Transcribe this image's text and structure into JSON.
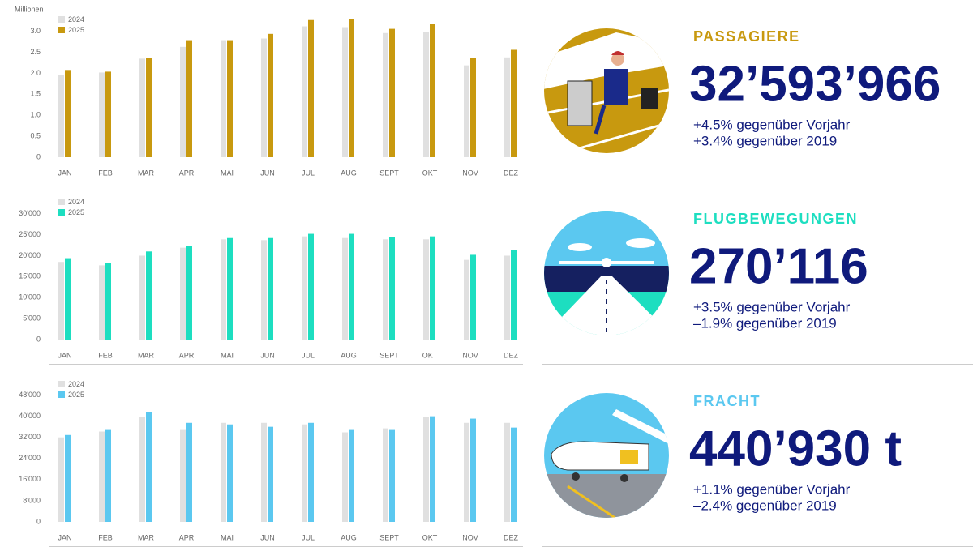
{
  "chart_data": [
    {
      "type": "bar",
      "y_label": "Millionen",
      "categories": [
        "JAN",
        "FEB",
        "MAR",
        "APR",
        "MAI",
        "JUN",
        "JUL",
        "AUG",
        "SEPT",
        "OKT",
        "NOV",
        "DEZ"
      ],
      "series": [
        {
          "name": "2024",
          "color": "#e0e0e0",
          "values": [
            1.96,
            2.02,
            2.35,
            2.63,
            2.79,
            2.83,
            3.12,
            3.1,
            2.96,
            2.98,
            2.19,
            2.38
          ]
        },
        {
          "name": "2025",
          "color": "#c8990f",
          "values": [
            2.08,
            2.04,
            2.37,
            2.79,
            2.79,
            2.94,
            3.27,
            3.29,
            3.06,
            3.17,
            2.37,
            2.56
          ]
        }
      ],
      "ylim": [
        0,
        3.4
      ],
      "yticks": [
        0,
        0.5,
        {
          "value": 1,
          "label": "1.0"
        },
        1.5,
        {
          "value": 2,
          "label": "2.0"
        },
        2.5,
        {
          "value": 3,
          "label": "3.0"
        }
      ]
    },
    {
      "type": "bar",
      "categories": [
        "JAN",
        "FEB",
        "MAR",
        "APR",
        "MAI",
        "JUN",
        "JUL",
        "AUG",
        "SEPT",
        "OKT",
        "NOV",
        "DEZ"
      ],
      "series": [
        {
          "name": "2024",
          "color": "#e0e0e0",
          "values": [
            18500,
            17700,
            20000,
            21900,
            23900,
            23700,
            24600,
            24200,
            23900,
            23900,
            19000,
            20000
          ]
        },
        {
          "name": "2025",
          "color": "#1ddec0",
          "values": [
            19400,
            18300,
            21000,
            22300,
            24200,
            24200,
            25200,
            25200,
            24400,
            24600,
            20200,
            21400
          ]
        }
      ],
      "ylim": [
        0,
        34000
      ],
      "yticks": [
        0,
        {
          "value": 5000,
          "label": "5'000"
        },
        {
          "value": 10000,
          "label": "10'000"
        },
        {
          "value": 15000,
          "label": "15'000"
        },
        {
          "value": 20000,
          "label": "20'000"
        },
        {
          "value": 25000,
          "label": "25'000"
        },
        {
          "value": 30000,
          "label": "30'000"
        }
      ]
    },
    {
      "type": "bar",
      "categories": [
        "JAN",
        "FEB",
        "MAR",
        "APR",
        "MAI",
        "JUN",
        "JUL",
        "AUG",
        "SEPT",
        "OKT",
        "NOV",
        "DEZ"
      ],
      "series": [
        {
          "name": "2024",
          "color": "#e0e0e0",
          "values": [
            32000,
            34200,
            39700,
            34800,
            37500,
            37500,
            36900,
            33900,
            35400,
            39700,
            37500,
            37500
          ]
        },
        {
          "name": "2025",
          "color": "#5bc8f0",
          "values": [
            32900,
            34800,
            41500,
            37500,
            36900,
            36000,
            37500,
            34800,
            34800,
            40000,
            39100,
            35700
          ]
        }
      ],
      "ylim": [
        0,
        54000
      ],
      "yticks": [
        0,
        {
          "value": 8000,
          "label": "8'000"
        },
        {
          "value": 16000,
          "label": "16'000"
        },
        {
          "value": 24000,
          "label": "24'000"
        },
        {
          "value": 32000,
          "label": "32'000"
        },
        {
          "value": 40000,
          "label": "40'000"
        },
        {
          "value": 48000,
          "label": "48'000"
        }
      ]
    }
  ],
  "stats": [
    {
      "title": "PASSAGIERE",
      "value": "32’593’966",
      "lines": [
        "+4.5% gegenüber Vorjahr",
        "+3.4% gegenüber 2019"
      ]
    },
    {
      "title": "FLUGBEWEGUNGEN",
      "value": "270’116",
      "lines": [
        "+3.5% gegenüber Vorjahr",
        "–1.9% gegenüber 2019"
      ]
    },
    {
      "title": "FRACHT",
      "value": "440’930 t",
      "lines": [
        "+1.1% gegenüber Vorjahr",
        "–2.4% gegenüber 2019"
      ]
    }
  ]
}
